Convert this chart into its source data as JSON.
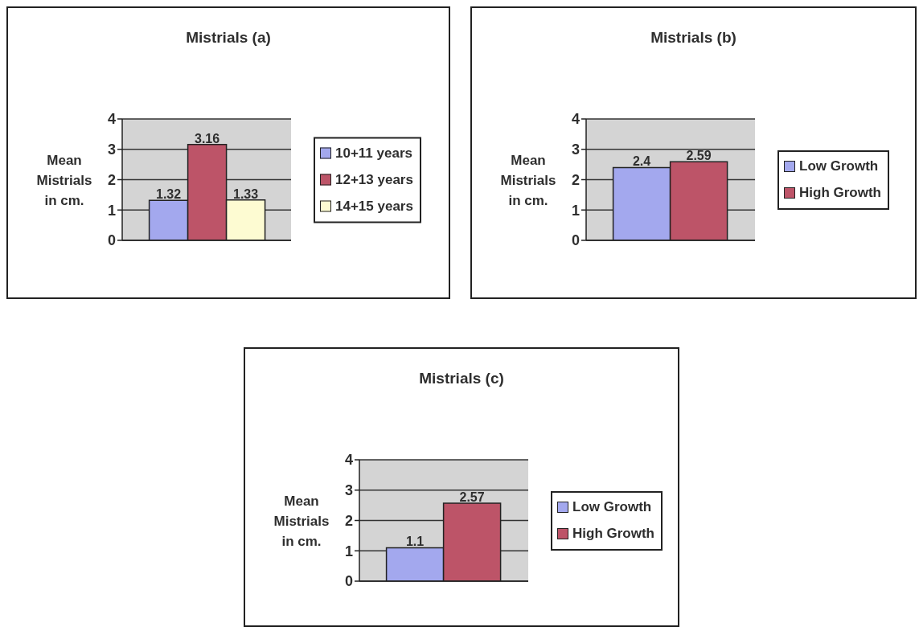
{
  "chart_data": [
    {
      "type": "bar",
      "title": "Mistrials (a)",
      "ylabel": "Mean Mistrials in cm.",
      "categories": [
        null
      ],
      "series": [
        {
          "name": "10+11 years",
          "color": "#a3a8ee",
          "values": [
            1.32
          ]
        },
        {
          "name": "12+13 years",
          "color": "#bd5468",
          "values": [
            3.16
          ]
        },
        {
          "name": "14+15 years",
          "color": "#fdfbd2",
          "values": [
            1.33
          ]
        }
      ],
      "ylim": [
        0,
        4
      ],
      "yticks": [
        0,
        1,
        2,
        3,
        4
      ],
      "grid": "y",
      "legend": "right",
      "data_labels": true
    },
    {
      "type": "bar",
      "title": "Mistrials (b)",
      "ylabel": "Mean Mistrials in cm.",
      "categories": [
        null
      ],
      "series": [
        {
          "name": "Low Growth",
          "color": "#a3a8ee",
          "values": [
            2.4
          ]
        },
        {
          "name": "High Growth",
          "color": "#bd5468",
          "values": [
            2.59
          ]
        }
      ],
      "ylim": [
        0,
        4
      ],
      "yticks": [
        0,
        1,
        2,
        3,
        4
      ],
      "grid": "y",
      "legend": "right",
      "data_labels": true
    },
    {
      "type": "bar",
      "title": "Mistrials (c)",
      "ylabel": "Mean Mistrials in cm.",
      "categories": [
        null
      ],
      "series": [
        {
          "name": "Low Growth",
          "color": "#a3a8ee",
          "values": [
            1.1
          ]
        },
        {
          "name": "High Growth",
          "color": "#bd5468",
          "values": [
            2.57
          ]
        }
      ],
      "ylim": [
        0,
        4
      ],
      "yticks": [
        0,
        1,
        2,
        3,
        4
      ],
      "grid": "y",
      "legend": "right",
      "data_labels": true
    }
  ]
}
